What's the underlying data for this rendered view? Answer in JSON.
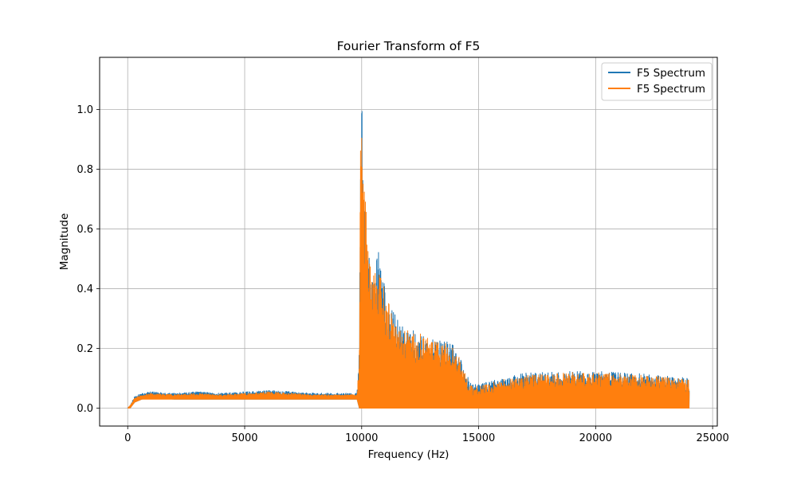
{
  "chart_data": {
    "type": "line",
    "title": "Fourier Transform of F5",
    "xlabel": "Frequency (Hz)",
    "ylabel": "Magnitude",
    "xlim": [
      -1200,
      25200
    ],
    "ylim": [
      -0.06,
      1.175
    ],
    "x_ticks": [
      0,
      5000,
      10000,
      15000,
      20000,
      25000
    ],
    "x_tick_labels": [
      "0",
      "5000",
      "10000",
      "15000",
      "20000",
      "25000"
    ],
    "y_ticks": [
      0.0,
      0.2,
      0.4,
      0.6,
      0.8,
      1.0
    ],
    "y_tick_labels": [
      "0.0",
      "0.2",
      "0.4",
      "0.6",
      "0.8",
      "1.0"
    ],
    "grid": true,
    "legend_position": "top-right",
    "series": [
      {
        "name": "F5 Spectrum",
        "color": "#1f77b4",
        "envelope": {
          "x": [
            0,
            100,
            300,
            600,
            1000,
            2000,
            3000,
            4000,
            5000,
            6000,
            7000,
            8000,
            9000,
            9800,
            9900,
            9950,
            10000,
            10050,
            10100,
            10200,
            10300,
            10400,
            10500,
            10700,
            10800,
            11000,
            11500,
            12000,
            12500,
            13000,
            13500,
            14000,
            14300,
            14500,
            14700,
            15000,
            16000,
            17000,
            18000,
            19000,
            20000,
            21000,
            22000,
            23000,
            24000
          ],
          "max": [
            0,
            0.01,
            0.04,
            0.05,
            0.055,
            0.05,
            0.055,
            0.05,
            0.055,
            0.06,
            0.055,
            0.05,
            0.05,
            0.05,
            0.2,
            0.87,
            1.12,
            0.8,
            0.77,
            0.7,
            0.52,
            0.5,
            0.45,
            0.52,
            0.53,
            0.4,
            0.3,
            0.27,
            0.25,
            0.23,
            0.23,
            0.21,
            0.15,
            0.11,
            0.08,
            0.08,
            0.1,
            0.12,
            0.12,
            0.125,
            0.125,
            0.12,
            0.115,
            0.11,
            0.1
          ],
          "min": [
            0,
            0.0,
            0.02,
            0.03,
            0.035,
            0.03,
            0.03,
            0.03,
            0.03,
            0.03,
            0.03,
            0.03,
            0.03,
            0.03,
            0.0,
            0.0,
            0.0,
            0.0,
            0.0,
            0.0,
            0.0,
            0.0,
            0.0,
            0.0,
            0.0,
            0.0,
            0.0,
            0.0,
            0.0,
            0.0,
            0.0,
            0.0,
            0.0,
            0.0,
            0.0,
            0.0,
            0.0,
            0.0,
            0.0,
            0.0,
            0.0,
            0.0,
            0.0,
            0.0,
            0.0
          ]
        }
      },
      {
        "name": "F5 Spectrum",
        "color": "#ff7f0e",
        "envelope": {
          "x": [
            0,
            100,
            300,
            600,
            1000,
            2000,
            3000,
            4000,
            5000,
            6000,
            7000,
            8000,
            9000,
            9800,
            9900,
            9950,
            10000,
            10050,
            10100,
            10200,
            10300,
            10400,
            10500,
            10700,
            10800,
            11000,
            11500,
            12000,
            12500,
            13000,
            13500,
            14000,
            14300,
            14500,
            14700,
            15000,
            16000,
            17000,
            18000,
            19000,
            20000,
            21000,
            22000,
            23000,
            24000
          ],
          "max": [
            0,
            0.01,
            0.035,
            0.045,
            0.05,
            0.045,
            0.05,
            0.045,
            0.05,
            0.055,
            0.05,
            0.045,
            0.045,
            0.045,
            0.19,
            0.87,
            1.12,
            0.8,
            0.77,
            0.7,
            0.52,
            0.5,
            0.44,
            0.5,
            0.52,
            0.38,
            0.29,
            0.26,
            0.25,
            0.23,
            0.22,
            0.2,
            0.15,
            0.1,
            0.075,
            0.075,
            0.095,
            0.11,
            0.115,
            0.12,
            0.12,
            0.115,
            0.11,
            0.105,
            0.095
          ],
          "min": [
            0,
            0.0,
            0.02,
            0.03,
            0.03,
            0.03,
            0.03,
            0.03,
            0.03,
            0.03,
            0.03,
            0.03,
            0.03,
            0.03,
            0.0,
            0.0,
            0.0,
            0.0,
            0.0,
            0.0,
            0.0,
            0.0,
            0.0,
            0.0,
            0.0,
            0.0,
            0.0,
            0.0,
            0.0,
            0.0,
            0.0,
            0.0,
            0.0,
            0.0,
            0.0,
            0.0,
            0.0,
            0.0,
            0.0,
            0.0,
            0.0,
            0.0,
            0.0,
            0.0,
            0.0
          ]
        }
      }
    ]
  }
}
